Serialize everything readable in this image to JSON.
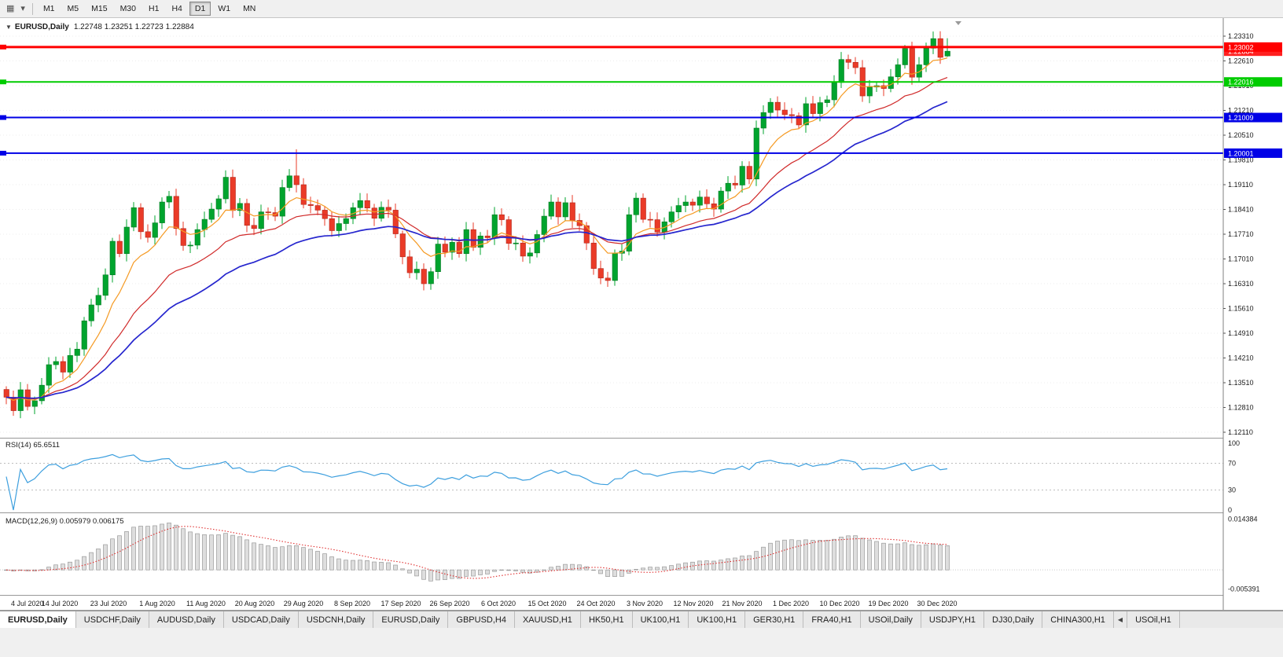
{
  "toolbar": {
    "chart_icon": "▦",
    "dropdown_icon": "▾",
    "timeframes": [
      "M1",
      "M5",
      "M15",
      "M30",
      "H1",
      "H4",
      "D1",
      "W1",
      "MN"
    ],
    "active_timeframe": "D1"
  },
  "header": {
    "collapse_icon": "▼",
    "symbol": "EURUSD,Daily",
    "ohlc": "1.22748 1.23251 1.22723 1.22884"
  },
  "chart_data": {
    "type": "candlestick",
    "symbol": "EURUSD",
    "timeframe": "Daily",
    "title": "EURUSD,Daily 1.22748 1.23251 1.22723 1.22884",
    "price_axis": {
      "top_value": 1.2331,
      "step": 0.007,
      "ticks": [
        "1.23310",
        "1.22610",
        "1.21910",
        "1.21210",
        "1.20510",
        "1.19810",
        "1.19110",
        "1.18410",
        "1.17710",
        "1.17010",
        "1.16310",
        "1.15610",
        "1.14910",
        "1.14210",
        "1.13510",
        "1.12810",
        "1.12110"
      ]
    },
    "x_labels": [
      "4 Jul 2020",
      "14 Jul 2020",
      "23 Jul 2020",
      "1 Aug 2020",
      "11 Aug 2020",
      "20 Aug 2020",
      "29 Aug 2020",
      "8 Sep 2020",
      "17 Sep 2020",
      "26 Sep 2020",
      "6 Oct 2020",
      "15 Oct 2020",
      "24 Oct 2020",
      "3 Nov 2020",
      "12 Nov 2020",
      "21 Nov 2020",
      "1 Dec 2020",
      "10 Dec 2020",
      "19 Dec 2020",
      "30 Dec 2020"
    ],
    "levels": [
      {
        "price": 1.23002,
        "label": "1.23002",
        "color": "#FF0000",
        "width": 3
      },
      {
        "price": 1.22016,
        "label": "1.22016",
        "color": "#00CC00",
        "width": 2
      },
      {
        "price": 1.21009,
        "label": "1.21009",
        "color": "#0000E6",
        "width": 2
      },
      {
        "price": 1.20001,
        "label": "1.20001",
        "color": "#0000E6",
        "width": 2
      }
    ],
    "current_price": {
      "value": 1.22884,
      "label": "1.22884",
      "color": "#FF2020"
    },
    "candles": {
      "first_open": 1.1332,
      "closes": [
        1.131,
        1.1272,
        1.1331,
        1.1284,
        1.13,
        1.1344,
        1.1402,
        1.1411,
        1.1381,
        1.1428,
        1.1446,
        1.1526,
        1.1571,
        1.1598,
        1.1656,
        1.1751,
        1.1716,
        1.1791,
        1.1846,
        1.1778,
        1.1762,
        1.1803,
        1.1862,
        1.1878,
        1.1787,
        1.1739,
        1.174,
        1.1784,
        1.1813,
        1.1842,
        1.1871,
        1.1932,
        1.1838,
        1.1858,
        1.1796,
        1.1787,
        1.1834,
        1.1832,
        1.1822,
        1.1903,
        1.1936,
        1.1911,
        1.1855,
        1.1852,
        1.1839,
        1.1815,
        1.1781,
        1.1801,
        1.1815,
        1.1846,
        1.1866,
        1.1845,
        1.1816,
        1.1847,
        1.1839,
        1.1772,
        1.1707,
        1.1662,
        1.1672,
        1.1631,
        1.1665,
        1.1743,
        1.172,
        1.1748,
        1.1716,
        1.1784,
        1.1734,
        1.1766,
        1.1761,
        1.1826,
        1.1812,
        1.1745,
        1.1746,
        1.1709,
        1.1718,
        1.177,
        1.1822,
        1.1862,
        1.182,
        1.186,
        1.181,
        1.1795,
        1.1746,
        1.1674,
        1.1647,
        1.164,
        1.1717,
        1.1723,
        1.1826,
        1.1873,
        1.1813,
        1.1812,
        1.1777,
        1.1806,
        1.1834,
        1.1852,
        1.1862,
        1.1853,
        1.1876,
        1.1857,
        1.1842,
        1.1893,
        1.1915,
        1.191,
        1.1963,
        1.1927,
        1.2071,
        1.2115,
        1.2144,
        1.2122,
        1.2109,
        1.2106,
        1.208,
        1.214,
        1.2112,
        1.2143,
        1.2151,
        1.22,
        1.2265,
        1.2257,
        1.2242,
        1.2162,
        1.2187,
        1.2191,
        1.2183,
        1.2216,
        1.225,
        1.2296,
        1.2215,
        1.225,
        1.2297,
        1.2324,
        1.2271,
        1.2288
      ],
      "wick_overrides": {
        "41": {
          "high": 1.2011
        },
        "59": {
          "low": 1.1612
        },
        "85": {
          "low": 1.1622
        },
        "131": {
          "high": 1.2344
        }
      },
      "last": {
        "open": 1.22748,
        "high": 1.23251,
        "low": 1.22723,
        "close": 1.22884
      }
    },
    "moving_averages": [
      {
        "name": "ma-fast",
        "type": "ema",
        "period": 8,
        "color": "#F59A23"
      },
      {
        "name": "ma-mid",
        "type": "ema",
        "period": 20,
        "color": "#D02A2A"
      },
      {
        "name": "ma-slow",
        "type": "ema",
        "period": 34,
        "color": "#2626CE"
      }
    ],
    "colors": {
      "up": "#00A42E",
      "up_stroke": "#037A22",
      "down": "#EA3B28",
      "down_stroke": "#B3271B",
      "background": "#FFFFFF",
      "axis_text": "#1A1A1A"
    },
    "rsi": {
      "label": "RSI(14) 65.6511",
      "period": 14,
      "value": 65.6511,
      "axis_ticks": [
        100,
        70,
        30,
        0
      ],
      "level_lines": [
        70,
        30
      ],
      "color": "#3D9FDE"
    },
    "macd": {
      "label": "MACD(12,26,9) 0.005979 0.006175",
      "fast": 12,
      "slow": 26,
      "signal_period": 9,
      "value_main": 0.005979,
      "value_signal": 0.006175,
      "axis_ticks": [
        {
          "label": "0.014384",
          "value": 0.014384
        },
        {
          "label": "-0.005391",
          "value": -0.005391
        }
      ],
      "histogram_fill": "#DEDEDE",
      "histogram_stroke": "#9A9A9A",
      "signal_color": "#E03030",
      "range": {
        "min": -0.0062,
        "max": 0.0152
      }
    }
  },
  "tabs": {
    "scroll_left_icon": "◀",
    "items": [
      {
        "label": "EURUSD,Daily",
        "active": true
      },
      {
        "label": "USDCHF,Daily"
      },
      {
        "label": "AUDUSD,Daily"
      },
      {
        "label": "USDCAD,Daily"
      },
      {
        "label": "USDCNH,Daily"
      },
      {
        "label": "EURUSD,Daily"
      },
      {
        "label": "GBPUSD,H4"
      },
      {
        "label": "XAUUSD,H1"
      },
      {
        "label": "HK50,H1"
      },
      {
        "label": "UK100,H1"
      },
      {
        "label": "UK100,H1"
      },
      {
        "label": "GER30,H1"
      },
      {
        "label": "FRA40,H1"
      },
      {
        "label": "USOil,Daily"
      },
      {
        "label": "USDJPY,H1"
      },
      {
        "label": "DJ30,Daily"
      },
      {
        "label": "CHINA300,H1"
      },
      {
        "label": "USOil,H1"
      }
    ]
  }
}
